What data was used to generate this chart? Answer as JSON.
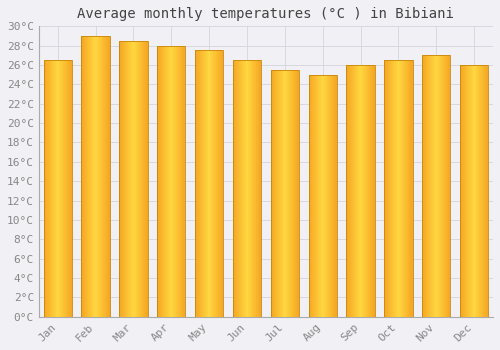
{
  "title": "Average monthly temperatures (°C ) in Bibiani",
  "months": [
    "Jan",
    "Feb",
    "Mar",
    "Apr",
    "May",
    "Jun",
    "Jul",
    "Aug",
    "Sep",
    "Oct",
    "Nov",
    "Dec"
  ],
  "values": [
    26.5,
    29.0,
    28.5,
    28.0,
    27.5,
    26.5,
    25.5,
    25.0,
    26.0,
    26.5,
    27.0,
    26.0
  ],
  "bar_color_center": "#FFD740",
  "bar_color_edge": "#F5A623",
  "bar_edge_color": "#C8860A",
  "ylim": [
    0,
    30
  ],
  "ytick_step": 2,
  "background_color": "#f0f0f5",
  "grid_color": "#d8d8e0",
  "title_fontsize": 10,
  "tick_fontsize": 8,
  "bar_width": 0.75
}
